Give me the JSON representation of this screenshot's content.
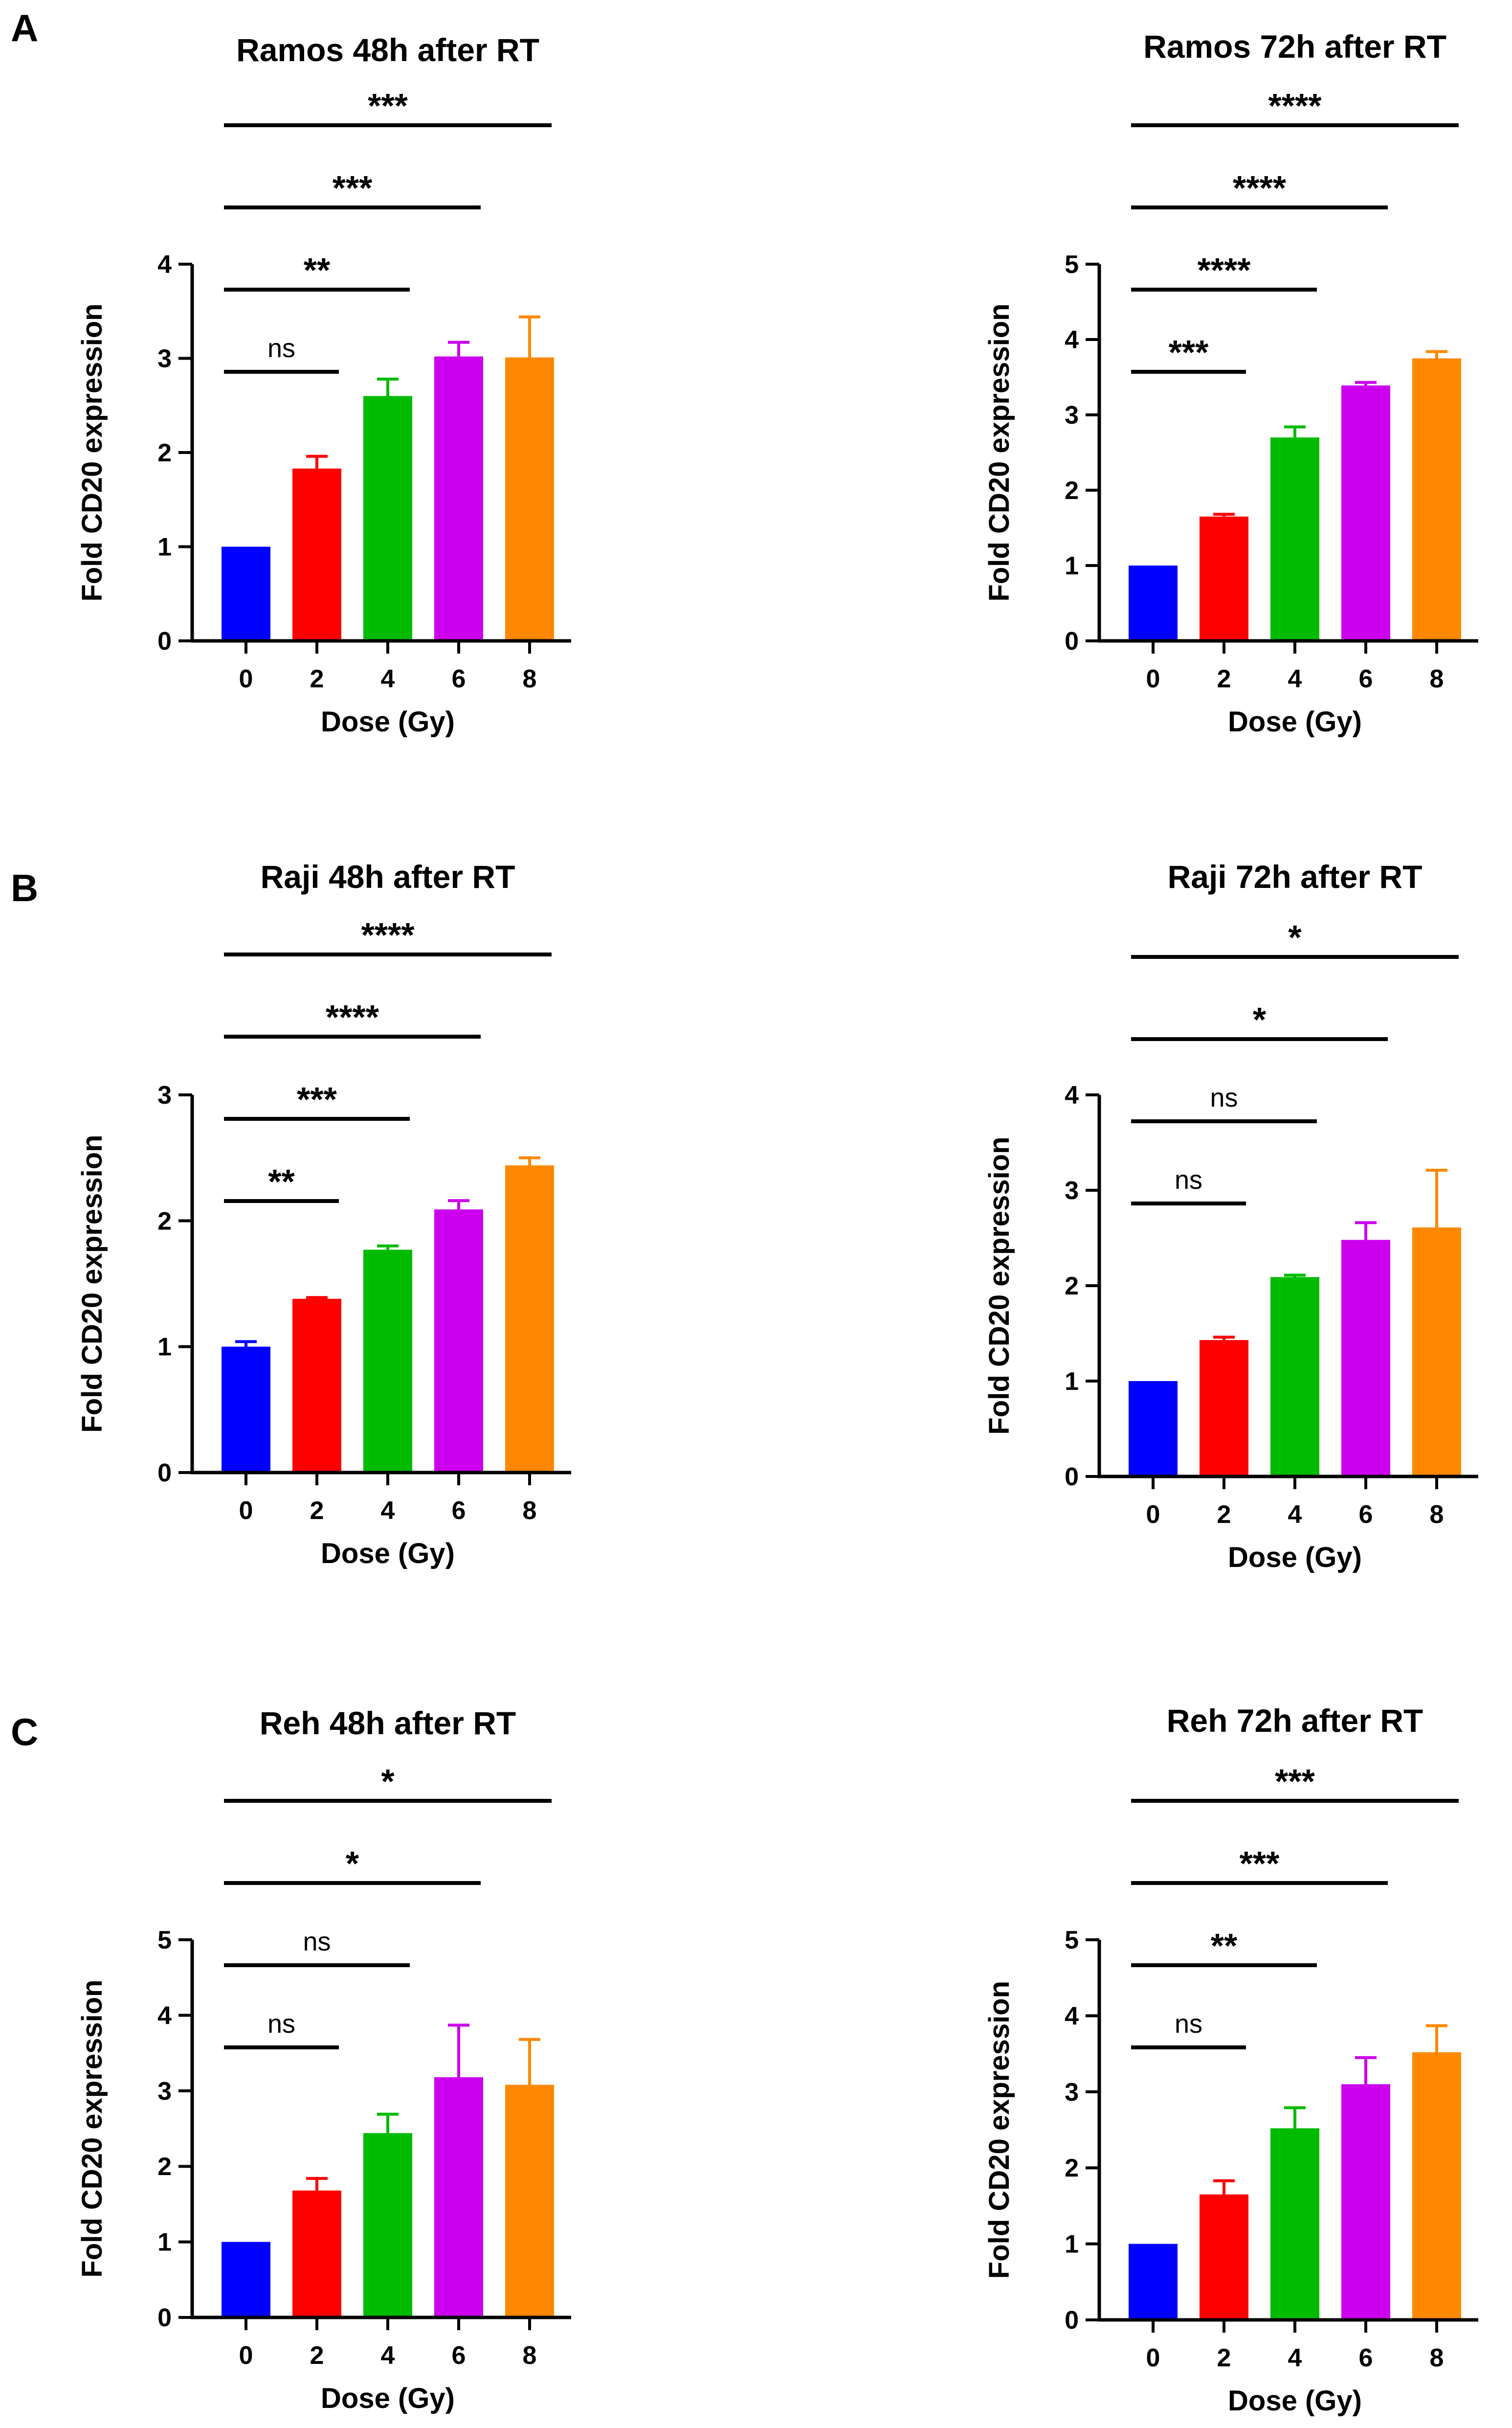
{
  "panel_letters": [
    "A",
    "B",
    "C"
  ],
  "colors": [
    "#0000ff",
    "#ff0000",
    "#00bb00",
    "#cc00ee",
    "#ff8800"
  ],
  "chart_data": [
    {
      "type": "bar",
      "title": "Ramos 48h after RT",
      "xlabel": "Dose (Gy)",
      "ylabel": "Fold CD20 expression",
      "categories": [
        "0",
        "2",
        "4",
        "6",
        "8"
      ],
      "values": [
        1.0,
        1.83,
        2.6,
        3.02,
        3.01
      ],
      "errors": [
        0.0,
        0.13,
        0.18,
        0.15,
        0.43
      ],
      "ylim": [
        0,
        4
      ],
      "yticks": [
        "0",
        "1",
        "2",
        "3",
        "4"
      ],
      "comparisons": [
        {
          "from": 0,
          "to": 1,
          "label": "ns"
        },
        {
          "from": 0,
          "to": 2,
          "label": "**"
        },
        {
          "from": 0,
          "to": 3,
          "label": "***"
        },
        {
          "from": 0,
          "to": 4,
          "label": "***"
        }
      ]
    },
    {
      "type": "bar",
      "title": "Ramos 72h after RT",
      "xlabel": "Dose (Gy)",
      "ylabel": "Fold CD20 expression",
      "categories": [
        "0",
        "2",
        "4",
        "6",
        "8"
      ],
      "values": [
        1.0,
        1.65,
        2.7,
        3.39,
        3.75
      ],
      "errors": [
        0.0,
        0.03,
        0.14,
        0.04,
        0.09
      ],
      "ylim": [
        0,
        5
      ],
      "yticks": [
        "0",
        "1",
        "2",
        "3",
        "4",
        "5"
      ],
      "comparisons": [
        {
          "from": 0,
          "to": 1,
          "label": "***"
        },
        {
          "from": 0,
          "to": 2,
          "label": "****"
        },
        {
          "from": 0,
          "to": 3,
          "label": "****"
        },
        {
          "from": 0,
          "to": 4,
          "label": "****"
        }
      ]
    },
    {
      "type": "bar",
      "title": "Raji 48h after RT",
      "xlabel": "Dose (Gy)",
      "ylabel": "Fold CD20 expression",
      "categories": [
        "0",
        "2",
        "4",
        "6",
        "8"
      ],
      "values": [
        1.0,
        1.38,
        1.77,
        2.09,
        2.44
      ],
      "errors": [
        0.04,
        0.01,
        0.03,
        0.07,
        0.06
      ],
      "ylim": [
        0,
        3
      ],
      "yticks": [
        "0",
        "1",
        "2",
        "3"
      ],
      "comparisons": [
        {
          "from": 0,
          "to": 1,
          "label": "**"
        },
        {
          "from": 0,
          "to": 2,
          "label": "***"
        },
        {
          "from": 0,
          "to": 3,
          "label": "****"
        },
        {
          "from": 0,
          "to": 4,
          "label": "****"
        }
      ]
    },
    {
      "type": "bar",
      "title": "Raji 72h after RT",
      "xlabel": "Dose (Gy)",
      "ylabel": "Fold CD20 expression",
      "categories": [
        "0",
        "2",
        "4",
        "6",
        "8"
      ],
      "values": [
        1.0,
        1.43,
        2.09,
        2.48,
        2.61
      ],
      "errors": [
        0.0,
        0.03,
        0.02,
        0.18,
        0.6
      ],
      "ylim": [
        0,
        4
      ],
      "yticks": [
        "0",
        "1",
        "2",
        "3",
        "4"
      ],
      "comparisons": [
        {
          "from": 0,
          "to": 1,
          "label": "ns"
        },
        {
          "from": 0,
          "to": 2,
          "label": "ns"
        },
        {
          "from": 0,
          "to": 3,
          "label": "*"
        },
        {
          "from": 0,
          "to": 4,
          "label": "*"
        }
      ]
    },
    {
      "type": "bar",
      "title": "Reh 48h after RT",
      "xlabel": "Dose (Gy)",
      "ylabel": "Fold CD20 expression",
      "categories": [
        "0",
        "2",
        "4",
        "6",
        "8"
      ],
      "values": [
        1.0,
        1.68,
        2.44,
        3.18,
        3.08
      ],
      "errors": [
        0.0,
        0.16,
        0.25,
        0.69,
        0.6
      ],
      "ylim": [
        0,
        5
      ],
      "yticks": [
        "0",
        "1",
        "2",
        "3",
        "4",
        "5"
      ],
      "comparisons": [
        {
          "from": 0,
          "to": 1,
          "label": "ns"
        },
        {
          "from": 0,
          "to": 2,
          "label": "ns"
        },
        {
          "from": 0,
          "to": 3,
          "label": "*"
        },
        {
          "from": 0,
          "to": 4,
          "label": "*"
        }
      ]
    },
    {
      "type": "bar",
      "title": "Reh 72h after RT",
      "xlabel": "Dose (Gy)",
      "ylabel": "Fold CD20 expression",
      "categories": [
        "0",
        "2",
        "4",
        "6",
        "8"
      ],
      "values": [
        1.0,
        1.65,
        2.52,
        3.1,
        3.52
      ],
      "errors": [
        0.0,
        0.18,
        0.27,
        0.35,
        0.35
      ],
      "ylim": [
        0,
        5
      ],
      "yticks": [
        "0",
        "1",
        "2",
        "3",
        "4",
        "5"
      ],
      "comparisons": [
        {
          "from": 0,
          "to": 1,
          "label": "ns"
        },
        {
          "from": 0,
          "to": 2,
          "label": "**"
        },
        {
          "from": 0,
          "to": 3,
          "label": "***"
        },
        {
          "from": 0,
          "to": 4,
          "label": "***"
        }
      ]
    }
  ]
}
